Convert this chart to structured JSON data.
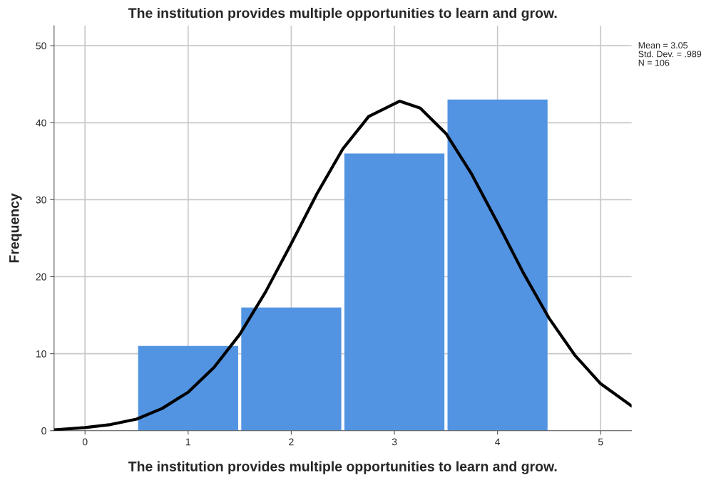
{
  "chart_data": {
    "type": "histogram",
    "title": "The institution provides multiple opportunities to learn and grow.",
    "xlabel": "The institution provides multiple opportunities to learn and grow.",
    "ylabel": "Frequency",
    "bins": [
      0.5,
      1.5,
      2.5,
      3.5,
      4.5
    ],
    "values": [
      11,
      16,
      36,
      43
    ],
    "color": "#5294e2",
    "series": [
      {
        "type": "line",
        "color": "#000000",
        "x": [
          -0.3,
          0,
          0.25,
          0.5,
          0.75,
          1,
          1.25,
          1.5,
          1.75,
          2,
          2.25,
          2.5,
          2.75,
          3.05,
          3.25,
          3.5,
          3.75,
          4,
          4.25,
          4.5,
          4.75,
          5,
          5.3
        ],
        "values": [
          0.1,
          0.4,
          0.8,
          1.5,
          2.9,
          5.0,
          8.2,
          12.5,
          18.0,
          24.3,
          30.8,
          36.6,
          40.8,
          42.8,
          41.9,
          38.6,
          33.3,
          27.0,
          20.5,
          14.6,
          9.8,
          6.1,
          3.2
        ]
      }
    ],
    "xlim": [
      -0.3,
      5.3
    ],
    "ylim": [
      0,
      52.6
    ],
    "xticks": [
      0,
      1,
      2,
      3,
      4,
      5
    ],
    "yticks": [
      0,
      10,
      20,
      30,
      40,
      50
    ],
    "grid": true,
    "legend": false,
    "annotations": [
      "Mean = 3.05",
      "Std. Dev. = .989",
      "N = 106"
    ]
  }
}
